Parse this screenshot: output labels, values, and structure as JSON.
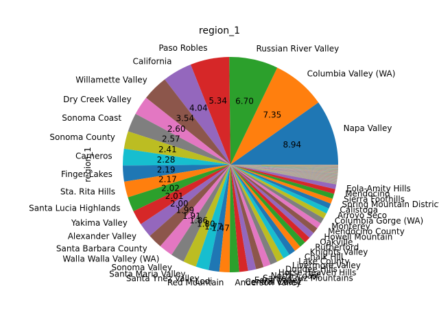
{
  "chart_data": {
    "type": "pie",
    "title": "region_1",
    "ylabel": "region_1",
    "start_angle_deg": 0,
    "direction": "counterclockwise",
    "show_percent_labels": true,
    "percent_format": "%.2f",
    "labeled_slices": [
      {
        "label": "Napa Valley",
        "percent": 8.94,
        "color": "#1f77b4"
      },
      {
        "label": "Columbia Valley (WA)",
        "percent": 7.35,
        "color": "#ff7f0e"
      },
      {
        "label": "Russian River Valley",
        "percent": 6.7,
        "color": "#2ca02c"
      },
      {
        "label": "Paso Robles",
        "percent": 5.34,
        "color": "#d62728"
      },
      {
        "label": "California",
        "percent": 4.04,
        "color": "#9467bd"
      },
      {
        "label": "Willamette Valley",
        "percent": 3.54,
        "color": "#8c564b"
      },
      {
        "label": "Dry Creek Valley",
        "percent": 2.6,
        "color": "#e377c2"
      },
      {
        "label": "Sonoma Coast",
        "percent": 2.57,
        "color": "#7f7f7f"
      },
      {
        "label": "Sonoma County",
        "percent": 2.41,
        "color": "#bcbd22"
      },
      {
        "label": "Carneros",
        "percent": 2.28,
        "color": "#17becf"
      },
      {
        "label": "Finger Lakes",
        "percent": 2.19,
        "color": "#1f77b4"
      },
      {
        "label": "Sta. Rita Hills",
        "percent": 2.17,
        "color": "#ff7f0e"
      },
      {
        "label": "Santa Lucia Highlands",
        "percent": 2.02,
        "color": "#2ca02c"
      },
      {
        "label": "Yakima Valley",
        "percent": 2.01,
        "color": "#d62728"
      },
      {
        "label": "Alexander Valley",
        "percent": 2.0,
        "color": "#9467bd"
      },
      {
        "label": "Santa Barbara County",
        "percent": 1.99,
        "color": "#8c564b"
      },
      {
        "label": "Walla Walla Valley (WA)",
        "percent": 1.91,
        "color": "#e377c2"
      },
      {
        "label": "Sonoma Valley",
        "percent": 1.86,
        "color": "#7f7f7f"
      },
      {
        "label": "Santa Maria Valley",
        "percent": 1.8,
        "color": "#bcbd22"
      },
      {
        "label": "Santa Ynez Valley",
        "percent": 1.77,
        "color": "#17becf"
      },
      {
        "label": "Lodi",
        "percent": 1.47,
        "color": "#1f77b4"
      },
      {
        "label": "Red Mountain",
        "percent": 1.4,
        "color": "#ff7f0e"
      },
      {
        "label": "Anderson Valley",
        "percent": 1.3,
        "color": "#2ca02c"
      },
      {
        "label": "Central Coast",
        "percent": 1.2,
        "color": "#d62728"
      },
      {
        "label": "Edna Valley",
        "percent": 1.1,
        "color": "#9467bd"
      },
      {
        "label": "Santa Cruz Mountains",
        "percent": 1.05,
        "color": "#8c564b"
      },
      {
        "label": "North Coast",
        "percent": 1.0,
        "color": "#e377c2"
      },
      {
        "label": "Horse Heaven Hills",
        "percent": 0.98,
        "color": "#7f7f7f"
      },
      {
        "label": "Dundee Hills",
        "percent": 0.96,
        "color": "#bcbd22"
      },
      {
        "label": "Livermore Valley",
        "percent": 0.94,
        "color": "#17becf"
      },
      {
        "label": "Lake County",
        "percent": 0.92,
        "color": "#1f77b4"
      },
      {
        "label": "Chalk Hill",
        "percent": 0.9,
        "color": "#ff7f0e"
      },
      {
        "label": "Knights Valley",
        "percent": 0.88,
        "color": "#2ca02c"
      },
      {
        "label": "Rutherford",
        "percent": 0.86,
        "color": "#d62728"
      },
      {
        "label": "Oakville",
        "percent": 0.84,
        "color": "#9467bd"
      },
      {
        "label": "Howell Mountain",
        "percent": 0.82,
        "color": "#8c564b"
      },
      {
        "label": "Mendocino County",
        "percent": 0.8,
        "color": "#e377c2"
      },
      {
        "label": "Monterey",
        "percent": 0.78,
        "color": "#7f7f7f"
      },
      {
        "label": "Columbia Gorge (WA)",
        "percent": 0.76,
        "color": "#bcbd22"
      },
      {
        "label": "Arroyo Seco",
        "percent": 0.74,
        "color": "#17becf"
      },
      {
        "label": "Calistoga",
        "percent": 0.72,
        "color": "#1f77b4"
      },
      {
        "label": "Spring Mountain District",
        "percent": 0.7,
        "color": "#ff7f0e"
      },
      {
        "label": "Sierra Foothills",
        "percent": 0.68,
        "color": "#2ca02c"
      },
      {
        "label": "Mendocino",
        "percent": 0.66,
        "color": "#d62728"
      },
      {
        "label": "Eola-Amity Hills",
        "percent": 0.64,
        "color": "#9467bd"
      }
    ],
    "visible_value_labels": [
      "8.94",
      "7.35",
      "6.70",
      "5.34",
      "4.04",
      "3.54",
      "2.60",
      "2.57",
      "2.41",
      "2.28",
      "2.19",
      "2.17",
      "2.02",
      "2.01",
      "2.00",
      "1.99",
      "1.91",
      "1.86",
      "1.80",
      "1.77",
      "1.47"
    ],
    "remaining_tiny_slices": {
      "count": 220,
      "total_percent": 2.7,
      "colors": [
        "#1f77b4",
        "#ff7f0e",
        "#2ca02c",
        "#d62728",
        "#9467bd",
        "#8c564b",
        "#e377c2",
        "#7f7f7f",
        "#bcbd22",
        "#17becf"
      ]
    }
  }
}
